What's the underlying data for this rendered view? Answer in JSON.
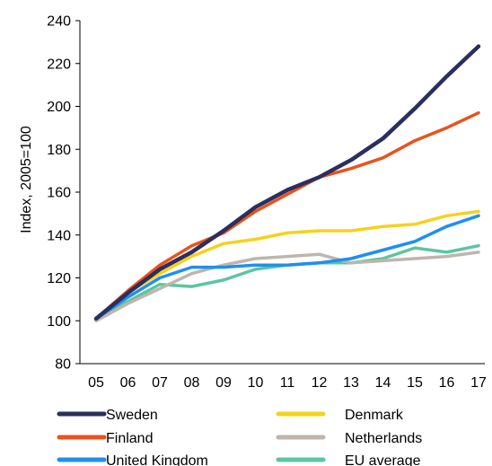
{
  "chart_data": {
    "type": "line",
    "title": "",
    "xlabel": "",
    "ylabel": "Index, 2005=100",
    "categories": [
      "05",
      "06",
      "07",
      "08",
      "09",
      "10",
      "11",
      "12",
      "13",
      "14",
      "15",
      "16",
      "17"
    ],
    "ylim": [
      80,
      240
    ],
    "yticks": [
      80,
      100,
      120,
      140,
      160,
      180,
      200,
      220,
      240
    ],
    "grid": false,
    "legend_position": "bottom",
    "series": [
      {
        "name": "Sweden",
        "color": "#2b2f5e",
        "values": [
          101,
          113,
          124,
          132,
          142,
          153,
          161,
          167,
          175,
          185,
          199,
          214,
          228
        ]
      },
      {
        "name": "Denmark",
        "color": "#f5d21b",
        "values": [
          101,
          113,
          122,
          130,
          136,
          138,
          141,
          142,
          142,
          144,
          145,
          149,
          151
        ]
      },
      {
        "name": "Finland",
        "color": "#e8531e",
        "values": [
          101,
          114,
          126,
          135,
          141,
          151,
          159,
          167,
          171,
          176,
          184,
          190,
          197
        ]
      },
      {
        "name": "Netherlands",
        "color": "#bfb5ae",
        "values": [
          100,
          108,
          115,
          122,
          126,
          129,
          130,
          131,
          127,
          128,
          129,
          130,
          132
        ]
      },
      {
        "name": "United Kingdom",
        "color": "#1e8ff0",
        "values": [
          101,
          111,
          120,
          125,
          125,
          126,
          126,
          127,
          129,
          133,
          137,
          144,
          149
        ]
      },
      {
        "name": "EU average",
        "color": "#5cc5a0",
        "values": [
          101,
          109,
          117,
          116,
          119,
          124,
          126,
          127,
          127,
          129,
          134,
          132,
          135
        ]
      }
    ]
  }
}
